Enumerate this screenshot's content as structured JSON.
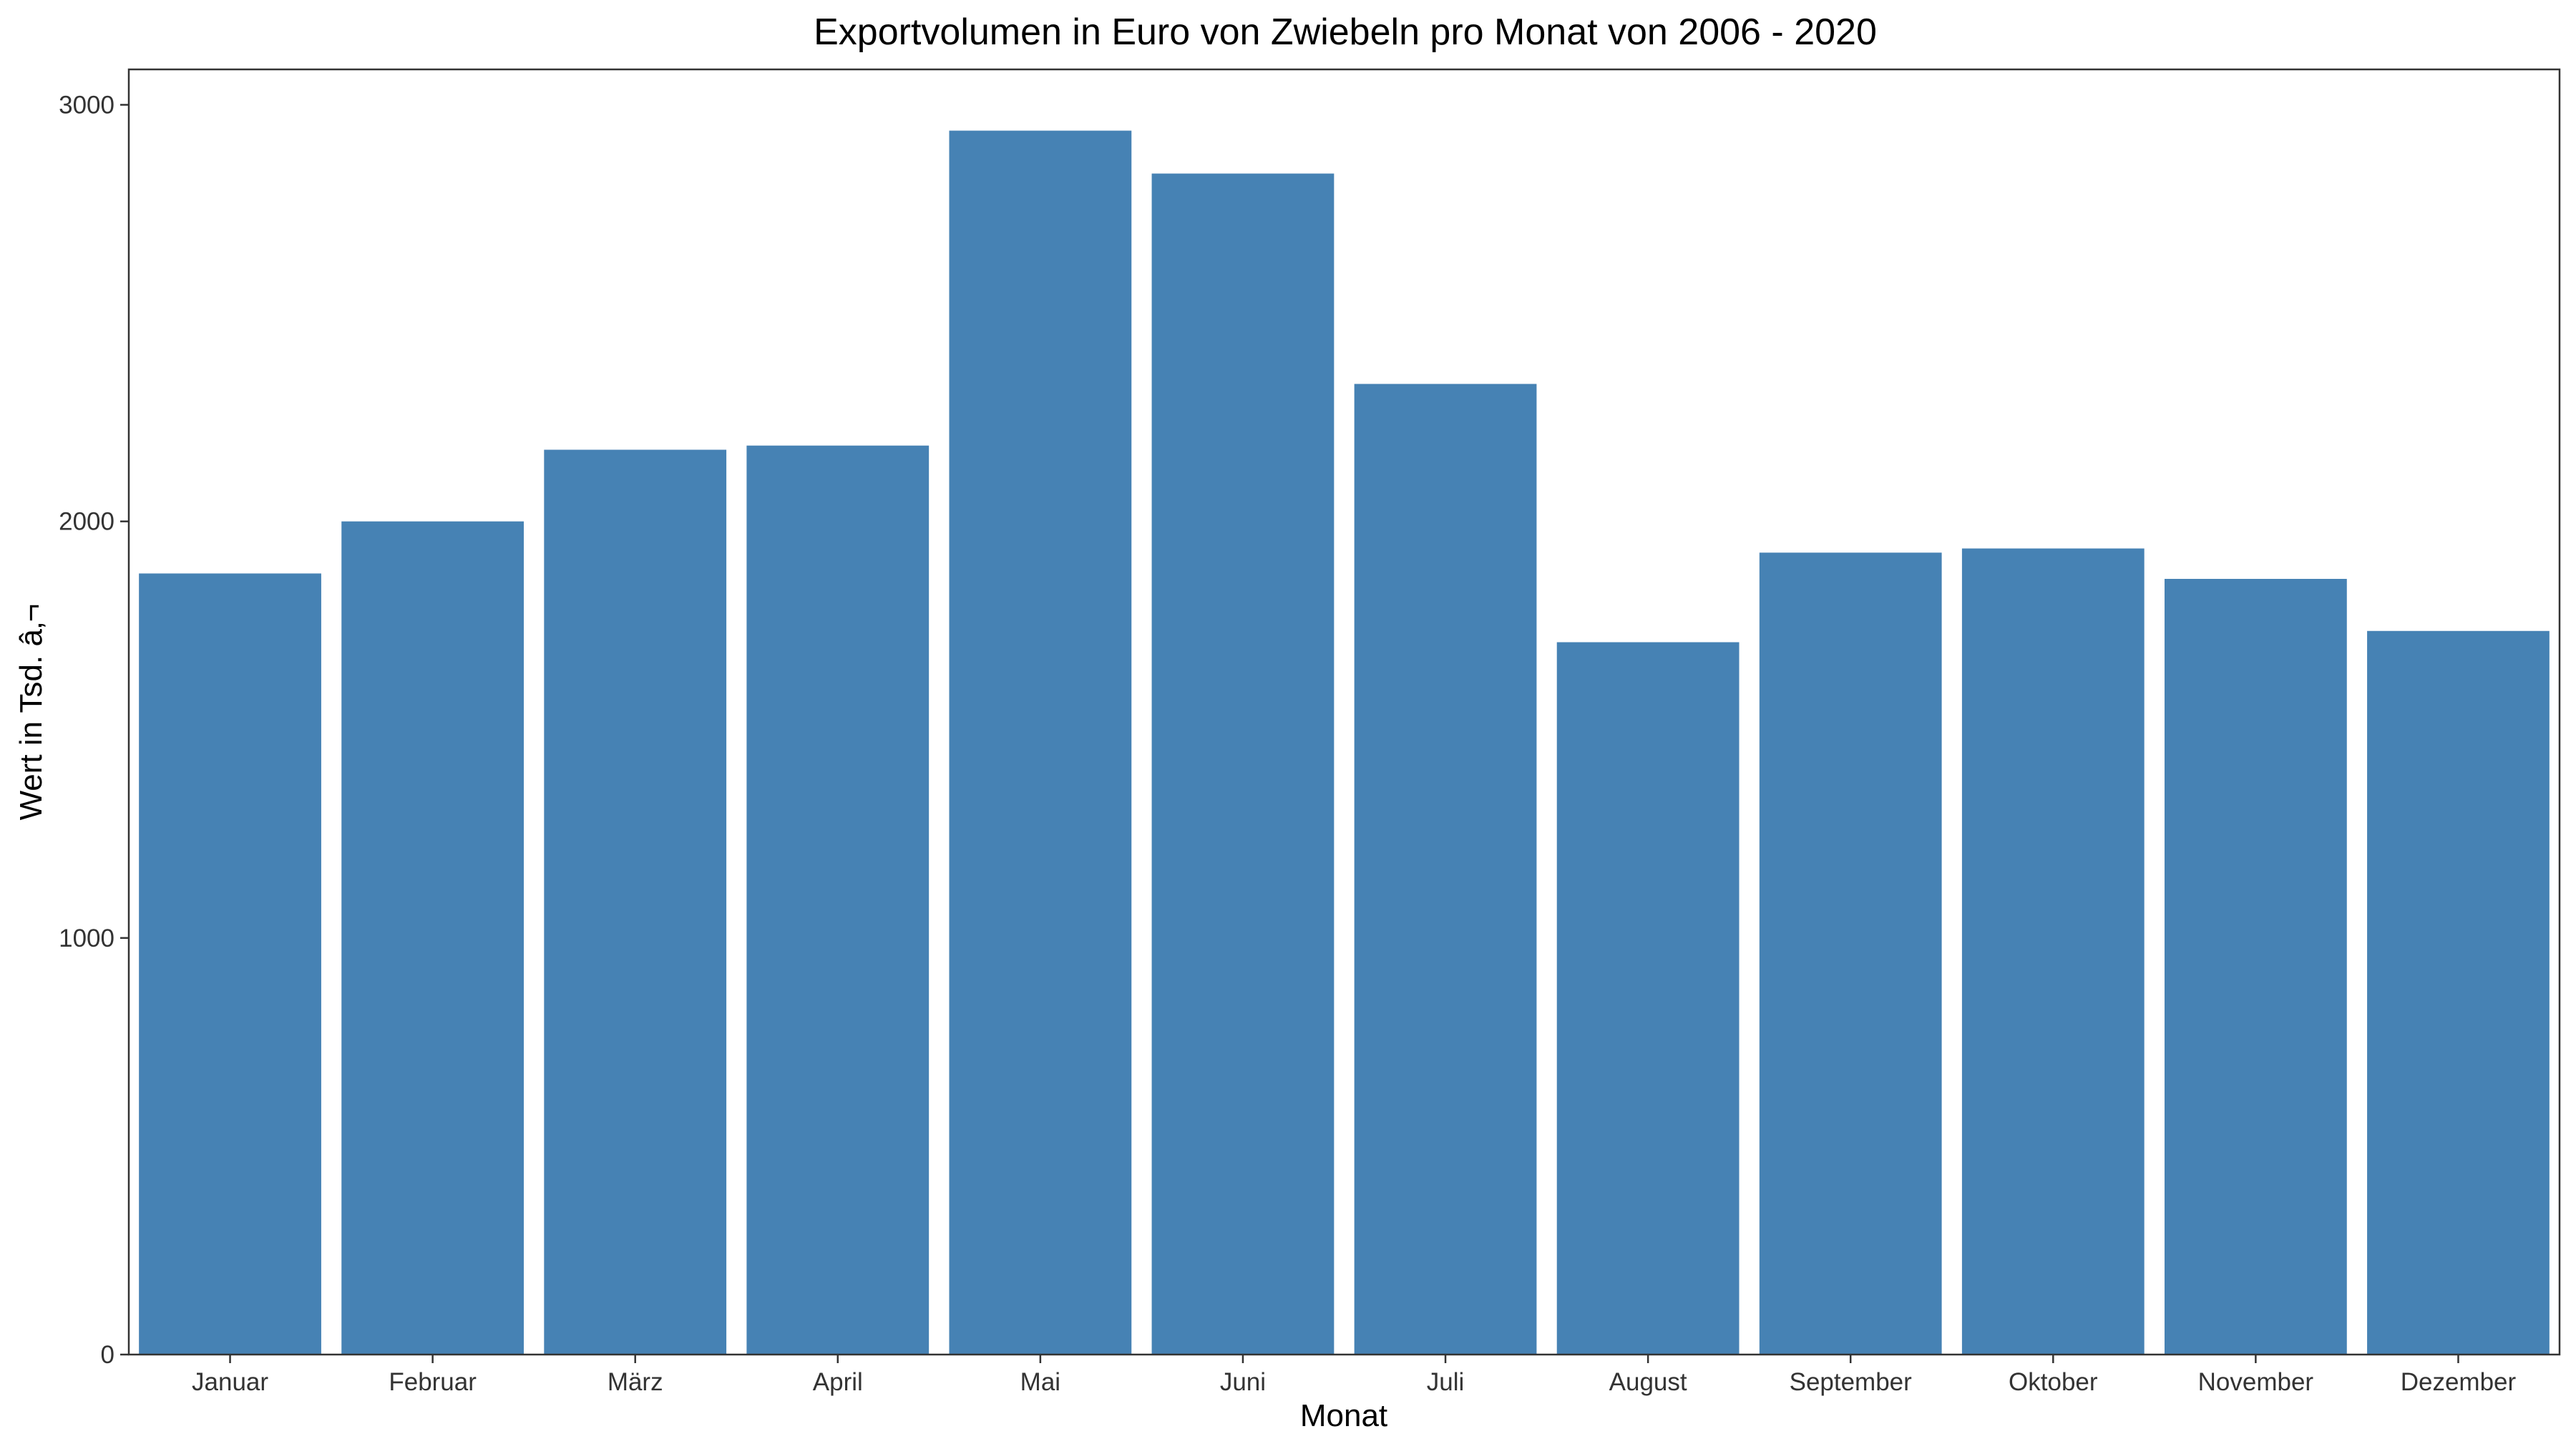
{
  "chart_data": {
    "type": "bar",
    "title": "Exportvolumen in Euro von Zwiebeln pro Monat von 2006 - 2020",
    "xlabel": "Monat",
    "ylabel": "Wert in Tsd. â‚¬",
    "categories": [
      "Januar",
      "Februar",
      "März",
      "April",
      "Mai",
      "Juni",
      "Juli",
      "August",
      "September",
      "Oktober",
      "November",
      "Dezember"
    ],
    "values": [
      1875,
      2000,
      2172,
      2182,
      2938,
      2835,
      2330,
      1710,
      1925,
      1935,
      1862,
      1737
    ],
    "ylim": [
      0,
      3085
    ],
    "yticks": [
      0,
      1000,
      2000,
      3000
    ],
    "bar_color": "#4682B4",
    "grid": false,
    "legend": "none"
  }
}
